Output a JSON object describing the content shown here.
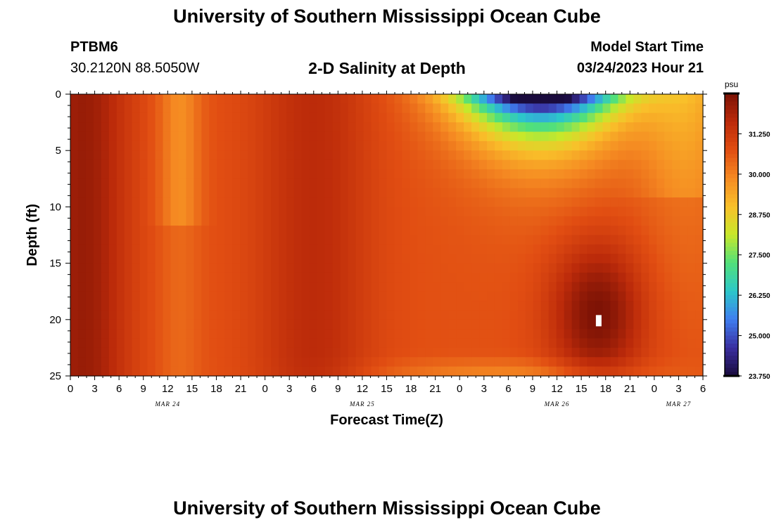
{
  "header": {
    "title": "University of Southern Mississippi Ocean Cube",
    "station_id": "PTBM6",
    "station_coords": "30.2120N  88.5050W",
    "plot_title": "2-D Salinity at Depth",
    "start_label": "Model Start Time",
    "start_value": "03/24/2023 Hour 21"
  },
  "footer": {
    "title": "University of Southern Mississippi Ocean Cube"
  },
  "chart_data": {
    "type": "heatmap",
    "xlabel": "Forecast Time(Z)",
    "ylabel": "Depth (ft)",
    "x_range_hours": [
      0,
      78
    ],
    "ylim": [
      0,
      25
    ],
    "y_reversed": true,
    "x_ticks": [
      "0",
      "3",
      "6",
      "9",
      "12",
      "15",
      "18",
      "21",
      "0",
      "3",
      "6",
      "9",
      "12",
      "15",
      "18",
      "21",
      "0",
      "3",
      "6",
      "9",
      "12",
      "15",
      "18",
      "21",
      "0",
      "3",
      "6"
    ],
    "y_ticks": [
      "0",
      "5",
      "10",
      "15",
      "20",
      "25"
    ],
    "date_labels": [
      {
        "label": "MAR 24",
        "hour": 12
      },
      {
        "label": "MAR 25",
        "hour": 36
      },
      {
        "label": "MAR 26",
        "hour": 60
      },
      {
        "label": "MAR 27",
        "hour": 75
      }
    ],
    "colorbar": {
      "unit": "psu",
      "min": 23.75,
      "max": 32.5,
      "ticks": [
        "31.250",
        "30.000",
        "28.750",
        "27.500",
        "26.250",
        "25.000",
        "23.750"
      ],
      "colors": [
        "#1a0b3d",
        "#3a2fa0",
        "#3f7ef0",
        "#2cc7c9",
        "#52e07a",
        "#c8e82a",
        "#f9c02a",
        "#f58a22",
        "#e14d12",
        "#bb2a0a",
        "#7b1205"
      ]
    },
    "grid": false,
    "features": [
      {
        "description": "low-salinity plume",
        "x_hours": 57,
        "depth_ft": 0,
        "min_psu": 23.8
      },
      {
        "description": "high-salinity core",
        "x_hours": 65,
        "depth_ft": 20,
        "max_psu": 32.4
      }
    ]
  }
}
